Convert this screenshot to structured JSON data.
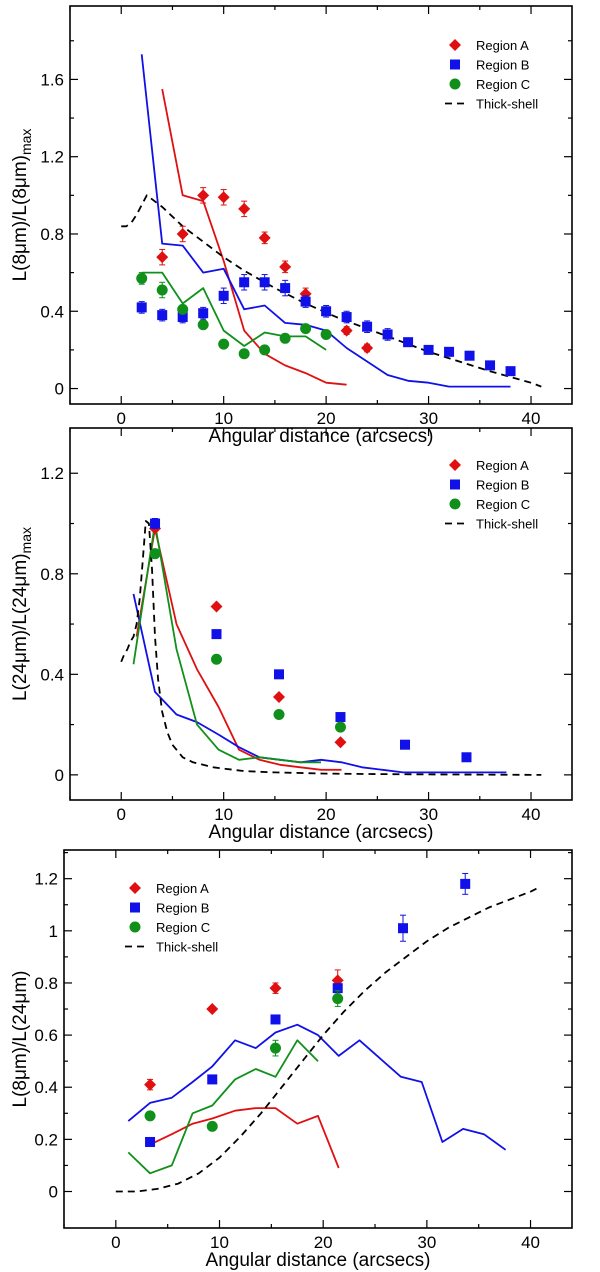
{
  "colors": {
    "Region A": "#e01010",
    "Region B": "#1010e8",
    "Region C": "#10901a",
    "Thick-shell": "#000000"
  },
  "chart_data": [
    {
      "type": "scatter",
      "xlabel": "Angular distance (arcsecs)",
      "ylabel_main": "L(8μm)/L(8μm)",
      "ylabel_sub": "max",
      "xlim": [
        -5,
        44
      ],
      "ylim": [
        -0.08,
        1.98
      ],
      "xticks": [
        0,
        10,
        20,
        30,
        40
      ],
      "yticks": [
        0,
        0.4,
        0.8,
        1.2,
        1.6
      ],
      "ytick_labels": [
        "0",
        "0.4",
        "0.8",
        "1.2",
        "1.6"
      ],
      "legend": {
        "entries": [
          "Region A",
          "Region B",
          "Region C",
          "Thick-shell"
        ],
        "position": "top-right"
      },
      "points": [
        {
          "name": "Region A",
          "marker": "diamond",
          "x": [
            4,
            6,
            8,
            10,
            12,
            14,
            16,
            18,
            22,
            24
          ],
          "y": [
            0.68,
            0.8,
            1.0,
            0.99,
            0.93,
            0.78,
            0.63,
            0.49,
            0.3,
            0.21
          ],
          "err": [
            0.04,
            0.04,
            0.04,
            0.04,
            0.04,
            0.03,
            0.03,
            0.03,
            0.02,
            0.02
          ]
        },
        {
          "name": "Region B",
          "marker": "square",
          "x": [
            2,
            4,
            6,
            8,
            10,
            12,
            14,
            16,
            18,
            20,
            22,
            24,
            26,
            28,
            30,
            32,
            34,
            36,
            38
          ],
          "y": [
            0.42,
            0.38,
            0.37,
            0.39,
            0.48,
            0.55,
            0.55,
            0.52,
            0.45,
            0.4,
            0.37,
            0.32,
            0.28,
            0.24,
            0.2,
            0.19,
            0.17,
            0.12,
            0.09
          ],
          "err": [
            0.03,
            0.03,
            0.03,
            0.03,
            0.04,
            0.04,
            0.04,
            0.04,
            0.03,
            0.03,
            0.03,
            0.03,
            0.03,
            0.02,
            0.02,
            0.02,
            0.02,
            0.02,
            0.02
          ]
        },
        {
          "name": "Region C",
          "marker": "circle",
          "x": [
            2,
            4,
            6,
            8,
            10,
            12,
            14,
            16,
            18,
            20
          ],
          "y": [
            0.57,
            0.51,
            0.41,
            0.33,
            0.23,
            0.18,
            0.2,
            0.26,
            0.31,
            0.28
          ],
          "err": [
            0.03,
            0.04,
            0.0,
            0.0,
            0.0,
            0.0,
            0.0,
            0.0,
            0.0,
            0.0
          ]
        }
      ],
      "lines": [
        {
          "name": "Region A",
          "style": "solid",
          "x": [
            4,
            6,
            8,
            10,
            12,
            14,
            16,
            18,
            20,
            22
          ],
          "y": [
            1.55,
            1.0,
            0.97,
            0.66,
            0.3,
            0.18,
            0.12,
            0.08,
            0.03,
            0.02
          ]
        },
        {
          "name": "Region B",
          "style": "solid",
          "x": [
            2,
            4,
            6,
            8,
            10,
            12,
            14,
            16,
            18,
            20,
            22,
            24,
            26,
            28,
            30,
            32,
            34,
            36,
            38
          ],
          "y": [
            1.73,
            0.75,
            0.74,
            0.6,
            0.62,
            0.41,
            0.43,
            0.34,
            0.33,
            0.3,
            0.21,
            0.14,
            0.07,
            0.04,
            0.03,
            0.01,
            0.01,
            0.01,
            0.01
          ]
        },
        {
          "name": "Region C",
          "style": "solid",
          "x": [
            2,
            4,
            6,
            8,
            10,
            12,
            14,
            16,
            18,
            20
          ],
          "y": [
            0.6,
            0.6,
            0.44,
            0.52,
            0.3,
            0.22,
            0.29,
            0.27,
            0.27,
            0.2
          ]
        },
        {
          "name": "Thick-shell",
          "style": "dashed",
          "x": [
            0,
            0.5,
            1,
            1.5,
            2,
            2.5,
            3,
            4,
            6,
            8,
            10,
            12,
            15,
            18,
            21,
            24,
            27,
            30,
            33,
            36,
            38,
            40,
            41
          ],
          "y": [
            0.84,
            0.84,
            0.86,
            0.9,
            0.95,
            1.0,
            0.98,
            0.94,
            0.84,
            0.76,
            0.68,
            0.61,
            0.52,
            0.44,
            0.37,
            0.31,
            0.25,
            0.19,
            0.14,
            0.09,
            0.06,
            0.03,
            0.01
          ]
        }
      ]
    },
    {
      "type": "scatter",
      "xlabel": "Angular distance (arcsecs)",
      "ylabel_main": "L(24μm)/L(24μm)",
      "ylabel_sub": "max",
      "xlim": [
        -5,
        44
      ],
      "ylim": [
        -0.1,
        1.38
      ],
      "xticks": [
        0,
        10,
        20,
        30,
        40
      ],
      "yticks": [
        0,
        0.4,
        0.8,
        1.2
      ],
      "ytick_labels": [
        "0",
        "0.4",
        "0.8",
        "1.2"
      ],
      "legend": {
        "entries": [
          "Region A",
          "Region B",
          "Region C",
          "Thick-shell"
        ],
        "position": "top-right"
      },
      "points": [
        {
          "name": "Region A",
          "marker": "diamond",
          "x": [
            3.3,
            9.3,
            15.4,
            21.4
          ],
          "y": [
            0.98,
            0.67,
            0.31,
            0.13
          ],
          "err": [
            0.0,
            0.0,
            0.0,
            0.0
          ]
        },
        {
          "name": "Region B",
          "marker": "square",
          "x": [
            3.3,
            9.3,
            15.4,
            21.4,
            27.7,
            33.7
          ],
          "y": [
            1.0,
            0.56,
            0.4,
            0.23,
            0.12,
            0.07
          ],
          "err": [
            0.02,
            0.0,
            0.0,
            0.0,
            0.0,
            0.0
          ]
        },
        {
          "name": "Region C",
          "marker": "circle",
          "x": [
            3.3,
            9.3,
            15.4,
            21.4
          ],
          "y": [
            0.88,
            0.46,
            0.24,
            0.19
          ],
          "err": [
            0.0,
            0.0,
            0.0,
            0.0
          ]
        }
      ],
      "lines": [
        {
          "name": "Region A",
          "style": "solid",
          "x": [
            1.5,
            3.3,
            5.4,
            7.4,
            9.5,
            11.5,
            13.5,
            15.5,
            17.5,
            19.5,
            21.5
          ],
          "y": [
            0.55,
            0.98,
            0.6,
            0.42,
            0.27,
            0.1,
            0.06,
            0.04,
            0.03,
            0.02,
            0.02
          ]
        },
        {
          "name": "Region B",
          "style": "solid",
          "x": [
            1.2,
            3.3,
            5.4,
            7.4,
            9.5,
            11.5,
            13.5,
            15.5,
            17.5,
            19.5,
            21.5,
            23.5,
            25.5,
            27.5,
            29.5,
            31.5,
            33.5,
            35.5,
            37.6
          ],
          "y": [
            0.72,
            0.33,
            0.24,
            0.21,
            0.16,
            0.11,
            0.07,
            0.06,
            0.05,
            0.06,
            0.05,
            0.03,
            0.02,
            0.01,
            0.01,
            0.01,
            0.01,
            0.01,
            0.01
          ]
        },
        {
          "name": "Region C",
          "style": "solid",
          "x": [
            1.2,
            3.3,
            5.4,
            7.4,
            9.5,
            11.5,
            13.5,
            15.5,
            17.5,
            19.5
          ],
          "y": [
            0.44,
            1.0,
            0.5,
            0.2,
            0.1,
            0.06,
            0.07,
            0.06,
            0.05,
            0.05
          ]
        },
        {
          "name": "Thick-shell",
          "style": "dashed",
          "x": [
            0,
            0.3,
            0.6,
            0.9,
            1.2,
            1.5,
            1.8,
            2.1,
            2.4,
            2.7,
            3.0,
            3.3,
            3.6,
            4.0,
            4.5,
            5.0,
            6.0,
            7.0,
            8.0,
            9.0,
            10,
            12,
            15,
            20,
            25,
            30,
            35,
            41
          ],
          "y": [
            0.45,
            0.48,
            0.5,
            0.53,
            0.55,
            0.6,
            0.7,
            0.85,
            1.01,
            1.0,
            0.82,
            0.55,
            0.38,
            0.25,
            0.17,
            0.12,
            0.07,
            0.05,
            0.04,
            0.03,
            0.025,
            0.015,
            0.01,
            0.005,
            0.003,
            0.002,
            0.001,
            0.0
          ]
        }
      ]
    },
    {
      "type": "scatter",
      "xlabel": "Angular distance (arcsecs)",
      "ylabel_main": "L(8μm)/L(24μm)",
      "ylabel_sub": "",
      "xlim": [
        -5,
        44
      ],
      "ylim": [
        -0.14,
        1.31
      ],
      "xticks": [
        0,
        10,
        20,
        30,
        40
      ],
      "yticks": [
        0,
        0.2,
        0.4,
        0.6,
        0.8,
        1.0,
        1.2
      ],
      "ytick_labels": [
        "0",
        "0.2",
        "0.4",
        "0.6",
        "0.8",
        "1",
        "1.2"
      ],
      "legend": {
        "entries": [
          "Region A",
          "Region B",
          "Region C",
          "Thick-shell"
        ],
        "position": "top-left"
      },
      "points": [
        {
          "name": "Region A",
          "marker": "diamond",
          "x": [
            3.3,
            9.3,
            15.4,
            21.4
          ],
          "y": [
            0.41,
            0.7,
            0.78,
            0.81
          ],
          "err": [
            0.02,
            0.0,
            0.02,
            0.04
          ]
        },
        {
          "name": "Region B",
          "marker": "square",
          "x": [
            3.3,
            9.3,
            15.4,
            21.4,
            27.7,
            33.7
          ],
          "y": [
            0.19,
            0.43,
            0.66,
            0.78,
            1.01,
            1.18
          ],
          "err": [
            0.0,
            0.0,
            0.0,
            0.0,
            0.05,
            0.04
          ]
        },
        {
          "name": "Region C",
          "marker": "circle",
          "x": [
            3.3,
            9.3,
            15.4,
            21.4
          ],
          "y": [
            0.29,
            0.25,
            0.55,
            0.74
          ],
          "err": [
            0.0,
            0.0,
            0.03,
            0.03
          ]
        }
      ],
      "lines": [
        {
          "name": "Region A",
          "style": "solid",
          "x": [
            3.3,
            5.4,
            7.4,
            9.3,
            11.5,
            13.5,
            15.4,
            17.5,
            19.5,
            21.5
          ],
          "y": [
            0.18,
            0.22,
            0.26,
            0.28,
            0.31,
            0.32,
            0.32,
            0.26,
            0.29,
            0.09
          ]
        },
        {
          "name": "Region B",
          "style": "solid",
          "x": [
            1.2,
            3.3,
            5.4,
            7.4,
            9.3,
            11.5,
            13.5,
            15.4,
            17.5,
            19.5,
            21.5,
            23.5,
            25.5,
            27.5,
            29.5,
            31.5,
            33.5,
            35.5,
            37.6
          ],
          "y": [
            0.27,
            0.34,
            0.36,
            0.42,
            0.48,
            0.58,
            0.55,
            0.61,
            0.64,
            0.6,
            0.52,
            0.58,
            0.51,
            0.44,
            0.42,
            0.19,
            0.24,
            0.22,
            0.16
          ]
        },
        {
          "name": "Region C",
          "style": "solid",
          "x": [
            1.2,
            3.3,
            5.4,
            7.4,
            9.3,
            11.5,
            13.5,
            15.4,
            17.5,
            19.5
          ],
          "y": [
            0.15,
            0.07,
            0.1,
            0.3,
            0.33,
            0.43,
            0.47,
            0.44,
            0.58,
            0.5
          ]
        },
        {
          "name": "Thick-shell",
          "style": "dashed",
          "x": [
            0,
            2,
            4,
            6,
            8,
            10,
            12,
            14,
            16,
            18,
            20,
            22,
            24,
            26,
            28,
            30,
            32,
            34,
            36,
            38,
            40,
            41
          ],
          "y": [
            0.0,
            0.0,
            0.01,
            0.03,
            0.07,
            0.13,
            0.21,
            0.3,
            0.4,
            0.5,
            0.6,
            0.69,
            0.77,
            0.84,
            0.9,
            0.96,
            1.01,
            1.05,
            1.09,
            1.12,
            1.15,
            1.17
          ]
        }
      ]
    }
  ]
}
